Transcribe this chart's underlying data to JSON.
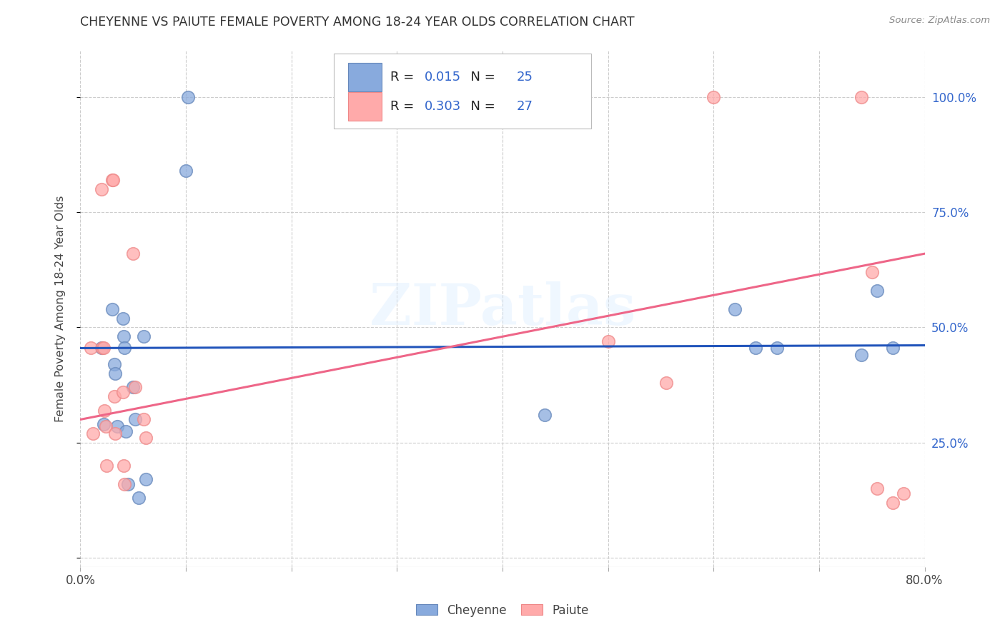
{
  "title": "CHEYENNE VS PAIUTE FEMALE POVERTY AMONG 18-24 YEAR OLDS CORRELATION CHART",
  "source": "Source: ZipAtlas.com",
  "ylabel": "Female Poverty Among 18-24 Year Olds",
  "xlim": [
    0.0,
    0.8
  ],
  "ylim": [
    -0.02,
    1.1
  ],
  "cheyenne_color": "#88AADD",
  "paiute_color": "#FFAAAA",
  "cheyenne_edge": "#6688BB",
  "paiute_edge": "#EE8888",
  "cheyenne_R": "0.015",
  "cheyenne_N": "25",
  "paiute_R": "0.303",
  "paiute_N": "27",
  "watermark": "ZIPatlas",
  "cheyenne_x": [
    0.02,
    0.022,
    0.03,
    0.032,
    0.033,
    0.035,
    0.04,
    0.041,
    0.042,
    0.043,
    0.045,
    0.05,
    0.052,
    0.055,
    0.06,
    0.062,
    0.1,
    0.102,
    0.44,
    0.62,
    0.64,
    0.66,
    0.74,
    0.755,
    0.77
  ],
  "cheyenne_y": [
    0.455,
    0.29,
    0.54,
    0.42,
    0.4,
    0.285,
    0.52,
    0.48,
    0.455,
    0.275,
    0.16,
    0.37,
    0.3,
    0.13,
    0.48,
    0.17,
    0.84,
    1.0,
    0.31,
    0.54,
    0.455,
    0.455,
    0.44,
    0.58,
    0.455
  ],
  "paiute_x": [
    0.01,
    0.012,
    0.02,
    0.021,
    0.022,
    0.023,
    0.024,
    0.025,
    0.03,
    0.031,
    0.032,
    0.033,
    0.04,
    0.041,
    0.042,
    0.05,
    0.052,
    0.06,
    0.062,
    0.5,
    0.555,
    0.6,
    0.74,
    0.75,
    0.755,
    0.77,
    0.78
  ],
  "paiute_y": [
    0.455,
    0.27,
    0.8,
    0.455,
    0.455,
    0.32,
    0.285,
    0.2,
    0.82,
    0.82,
    0.35,
    0.27,
    0.36,
    0.2,
    0.16,
    0.66,
    0.37,
    0.3,
    0.26,
    0.47,
    0.38,
    1.0,
    1.0,
    0.62,
    0.15,
    0.12,
    0.14
  ],
  "cheyenne_line_x": [
    0.0,
    0.8
  ],
  "cheyenne_line_y": [
    0.455,
    0.461
  ],
  "paiute_line_x": [
    0.0,
    0.8
  ],
  "paiute_line_y": [
    0.3,
    0.66
  ],
  "legend_R_color": "#3366CC",
  "background_color": "#FFFFFF",
  "grid_color": "#CCCCCC",
  "ytick_positions": [
    0.0,
    0.25,
    0.5,
    0.75,
    1.0
  ],
  "ytick_labels": [
    "",
    "25.0%",
    "50.0%",
    "75.0%",
    "100.0%"
  ]
}
